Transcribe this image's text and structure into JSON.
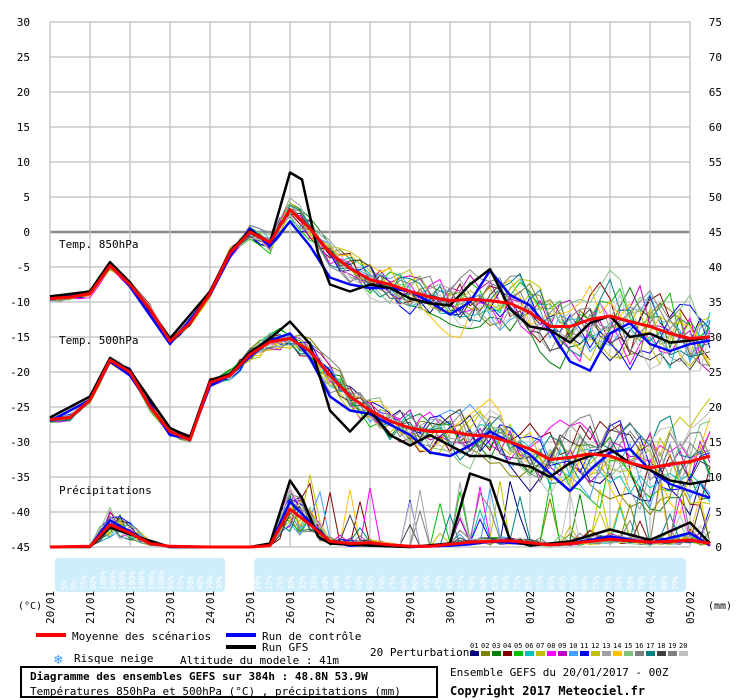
{
  "chart_data": {
    "type": "line",
    "title": "Diagramme des ensembles GEFS sur 384h : 48.8N 53.9W",
    "subtitle": "Températures 850hPa et 500hPa (°C) , précipitations (mm)",
    "left_unit": "(°C)",
    "right_unit": "(mm)",
    "y_left_ticks": [
      30,
      25,
      20,
      15,
      10,
      5,
      0,
      -5,
      -10,
      -15,
      -20,
      -25,
      -30,
      -35,
      -40,
      -45
    ],
    "y_right_ticks": [
      75,
      70,
      65,
      60,
      55,
      50,
      45,
      40,
      35,
      30,
      25,
      20,
      15,
      10,
      5,
      0
    ],
    "ylim": [
      -45,
      30
    ],
    "x_labels": [
      "20/01",
      "21/01",
      "22/01",
      "23/01",
      "24/01",
      "25/01",
      "26/01",
      "27/01",
      "28/01",
      "29/01",
      "30/01",
      "31/01",
      "01/02",
      "02/02",
      "03/02",
      "04/02",
      "05/02"
    ],
    "section_labels": {
      "t850": "Temp. 850hPa",
      "t500": "Temp. 500hPa",
      "precip": "Précipitations"
    },
    "snow_risk_pct": [
      "5%",
      "5%",
      "25%",
      "90%",
      "100%",
      "100%",
      "100%",
      "100%",
      "100%",
      "100%",
      "100%",
      "95%",
      "75%",
      "50%",
      "40%",
      "30%",
      "30%",
      "10%",
      "15%",
      "25%",
      "30%",
      "35%",
      "35%",
      "40%",
      "40%",
      "45%",
      "60%",
      "65%",
      "70%",
      "75%",
      "80%",
      "80%",
      "45%",
      "45%",
      "45%",
      "35%",
      "50%",
      "60%",
      "65%",
      "85%",
      "75%",
      "65%",
      "55%",
      "45%",
      "45%",
      "55%",
      "60%",
      "75%",
      "65%",
      "50%",
      "60%",
      "70%",
      "65%",
      "80%",
      "70%"
    ],
    "series": [
      {
        "name": "Moyenne des scénarios",
        "color": "#ff0000",
        "t850": [
          [
            0,
            -9.5
          ],
          [
            0.5,
            -9.3
          ],
          [
            1,
            -8.8
          ],
          [
            1.5,
            -4.8
          ],
          [
            2,
            -7.5
          ],
          [
            2.5,
            -11
          ],
          [
            3,
            -15.6
          ],
          [
            3.5,
            -13
          ],
          [
            4,
            -8.8
          ],
          [
            4.5,
            -3
          ],
          [
            5,
            0
          ],
          [
            5.5,
            -1.5
          ],
          [
            6,
            3.2
          ],
          [
            6.5,
            0.5
          ],
          [
            7,
            -3
          ],
          [
            7.5,
            -5.2
          ],
          [
            8,
            -6.8
          ],
          [
            8.5,
            -7.5
          ],
          [
            9,
            -8.5
          ],
          [
            9.5,
            -9.3
          ],
          [
            10,
            -9.8
          ],
          [
            10.5,
            -9.6
          ],
          [
            11,
            -9.8
          ],
          [
            11.5,
            -10.2
          ],
          [
            12,
            -11.5
          ],
          [
            12.5,
            -13.5
          ],
          [
            13,
            -13.5
          ],
          [
            13.5,
            -12.5
          ],
          [
            14,
            -12
          ],
          [
            14.5,
            -12.8
          ],
          [
            15,
            -13.5
          ],
          [
            15.5,
            -14.5
          ],
          [
            16,
            -15.2
          ],
          [
            16.5,
            -15
          ]
        ],
        "t500": [
          [
            0,
            -26.8
          ],
          [
            0.5,
            -26.5
          ],
          [
            1,
            -24
          ],
          [
            1.5,
            -18.3
          ],
          [
            2,
            -20
          ],
          [
            2.5,
            -25
          ],
          [
            3,
            -28.5
          ],
          [
            3.5,
            -29.7
          ],
          [
            4,
            -21.5
          ],
          [
            4.5,
            -20.5
          ],
          [
            5,
            -17.5
          ],
          [
            5.5,
            -15.7
          ],
          [
            6,
            -15.2
          ],
          [
            6.5,
            -17
          ],
          [
            7,
            -20.5
          ],
          [
            7.5,
            -23.5
          ],
          [
            8,
            -25.5
          ],
          [
            8.5,
            -27
          ],
          [
            9,
            -28
          ],
          [
            9.5,
            -28.5
          ],
          [
            10,
            -28.5
          ],
          [
            10.5,
            -29
          ],
          [
            11,
            -29.2
          ],
          [
            11.5,
            -30
          ],
          [
            12,
            -31
          ],
          [
            12.5,
            -32.5
          ],
          [
            13,
            -32.2
          ],
          [
            13.5,
            -31.7
          ],
          [
            14,
            -32
          ],
          [
            14.5,
            -33
          ],
          [
            15,
            -33.7
          ],
          [
            15.5,
            -33.2
          ],
          [
            16,
            -32.8
          ],
          [
            16.5,
            -32
          ]
        ],
        "precip": [
          [
            0,
            0
          ],
          [
            1,
            0.1
          ],
          [
            1.5,
            3.2
          ],
          [
            2,
            2
          ],
          [
            2.5,
            0.5
          ],
          [
            3,
            0.1
          ],
          [
            4,
            0
          ],
          [
            5,
            0
          ],
          [
            5.5,
            0.2
          ],
          [
            6,
            5.4
          ],
          [
            6.5,
            3.2
          ],
          [
            7,
            0.8
          ],
          [
            7.5,
            0.5
          ],
          [
            8,
            0.6
          ],
          [
            8.5,
            0.3
          ],
          [
            9,
            0.1
          ],
          [
            9.5,
            0.1
          ],
          [
            10,
            0.4
          ],
          [
            10.5,
            0.7
          ],
          [
            11,
            0.8
          ],
          [
            11.5,
            0.9
          ],
          [
            12,
            0.6
          ],
          [
            12.5,
            0.3
          ],
          [
            13,
            0.5
          ],
          [
            13.5,
            0.8
          ],
          [
            14,
            1.1
          ],
          [
            14.5,
            0.9
          ],
          [
            15,
            0.7
          ],
          [
            15.5,
            0.8
          ],
          [
            16,
            1
          ],
          [
            16.5,
            0.5
          ]
        ]
      },
      {
        "name": "Run de contrôle",
        "color": "#0000ff",
        "t850": [
          [
            0,
            -9.6
          ],
          [
            1,
            -8.7
          ],
          [
            1.5,
            -4.5
          ],
          [
            2,
            -7.8
          ],
          [
            3,
            -16
          ],
          [
            4,
            -9
          ],
          [
            4.5,
            -3.5
          ],
          [
            5,
            0.5
          ],
          [
            5.5,
            -2
          ],
          [
            6,
            1.5
          ],
          [
            6.5,
            -2
          ],
          [
            7,
            -6.5
          ],
          [
            7.5,
            -7.5
          ],
          [
            8,
            -8
          ],
          [
            8.5,
            -8
          ],
          [
            9,
            -8.5
          ],
          [
            9.5,
            -10
          ],
          [
            10,
            -11.8
          ],
          [
            10.5,
            -10
          ],
          [
            11,
            -5.5
          ],
          [
            11.5,
            -9
          ],
          [
            12,
            -10.5
          ],
          [
            12.5,
            -14
          ],
          [
            13,
            -18.5
          ],
          [
            13.5,
            -19.8
          ],
          [
            14,
            -14.5
          ],
          [
            14.5,
            -13
          ],
          [
            15,
            -16
          ],
          [
            15.5,
            -17
          ],
          [
            16,
            -16
          ],
          [
            16.5,
            -15.5
          ]
        ],
        "t500": [
          [
            0,
            -27
          ],
          [
            1,
            -24
          ],
          [
            1.5,
            -18.5
          ],
          [
            2,
            -20.5
          ],
          [
            3,
            -29
          ],
          [
            3.5,
            -29.5
          ],
          [
            4,
            -22
          ],
          [
            4.5,
            -20.5
          ],
          [
            5,
            -17.8
          ],
          [
            5.5,
            -15.5
          ],
          [
            6,
            -14.5
          ],
          [
            6.5,
            -18
          ],
          [
            7,
            -23.5
          ],
          [
            7.5,
            -25.5
          ],
          [
            8,
            -26
          ],
          [
            8.5,
            -27.5
          ],
          [
            9,
            -29
          ],
          [
            9.5,
            -31.5
          ],
          [
            10,
            -32
          ],
          [
            10.5,
            -30.5
          ],
          [
            11,
            -28.5
          ],
          [
            11.5,
            -30
          ],
          [
            12,
            -31.8
          ],
          [
            12.5,
            -34.5
          ],
          [
            13,
            -37
          ],
          [
            13.5,
            -34
          ],
          [
            14,
            -31.5
          ],
          [
            14.5,
            -31
          ],
          [
            15,
            -34
          ],
          [
            15.5,
            -36
          ],
          [
            16,
            -37
          ],
          [
            16.5,
            -38
          ]
        ],
        "precip": [
          [
            0,
            0
          ],
          [
            1,
            0.1
          ],
          [
            1.5,
            3.8
          ],
          [
            2,
            2.2
          ],
          [
            2.5,
            0.6
          ],
          [
            3,
            0
          ],
          [
            5,
            0
          ],
          [
            5.5,
            0.3
          ],
          [
            6,
            6.5
          ],
          [
            6.5,
            3.5
          ],
          [
            7,
            0.8
          ],
          [
            7.5,
            0.2
          ],
          [
            8,
            0.3
          ],
          [
            9,
            0
          ],
          [
            10,
            0.2
          ],
          [
            10.5,
            0.4
          ],
          [
            11,
            0.8
          ],
          [
            12,
            0.4
          ],
          [
            13,
            0.5
          ],
          [
            14,
            1.5
          ],
          [
            15,
            0.6
          ],
          [
            16,
            2
          ],
          [
            16.5,
            0.2
          ]
        ]
      },
      {
        "name": "Run GFS",
        "color": "#000000",
        "t850": [
          [
            0,
            -9.2
          ],
          [
            1,
            -8.5
          ],
          [
            1.5,
            -4.3
          ],
          [
            2,
            -7.2
          ],
          [
            3,
            -15.2
          ],
          [
            4,
            -8.5
          ],
          [
            4.5,
            -2.8
          ],
          [
            5,
            0.2
          ],
          [
            5.5,
            -1.5
          ],
          [
            6,
            8.5
          ],
          [
            6.3,
            7.5
          ],
          [
            6.7,
            -3
          ],
          [
            7,
            -7.5
          ],
          [
            7.5,
            -8.5
          ],
          [
            8,
            -7.5
          ],
          [
            8.5,
            -8
          ],
          [
            9,
            -9.5
          ],
          [
            9.5,
            -10.2
          ],
          [
            10,
            -10.5
          ],
          [
            10.5,
            -7.5
          ],
          [
            11,
            -5.3
          ],
          [
            11.5,
            -11
          ],
          [
            12,
            -13.5
          ],
          [
            12.5,
            -14
          ],
          [
            13,
            -15.8
          ],
          [
            13.5,
            -13
          ],
          [
            14,
            -12
          ],
          [
            14.5,
            -15
          ],
          [
            15,
            -14.5
          ],
          [
            15.5,
            -15.8
          ],
          [
            16,
            -15.5
          ],
          [
            16.5,
            -15
          ]
        ],
        "t500": [
          [
            0,
            -26.5
          ],
          [
            1,
            -23.5
          ],
          [
            1.5,
            -18
          ],
          [
            2,
            -19.8
          ],
          [
            3,
            -28
          ],
          [
            3.5,
            -29.3
          ],
          [
            4,
            -21.2
          ],
          [
            4.5,
            -20.3
          ],
          [
            5,
            -17.2
          ],
          [
            5.5,
            -15.2
          ],
          [
            6,
            -12.8
          ],
          [
            6.5,
            -16
          ],
          [
            7,
            -25.5
          ],
          [
            7.5,
            -28.5
          ],
          [
            8,
            -25.5
          ],
          [
            8.5,
            -29
          ],
          [
            9,
            -30.5
          ],
          [
            9.5,
            -29
          ],
          [
            10,
            -30.5
          ],
          [
            10.5,
            -32
          ],
          [
            11,
            -32
          ],
          [
            11.5,
            -33
          ],
          [
            12,
            -33.5
          ],
          [
            12.5,
            -35
          ],
          [
            13,
            -33
          ],
          [
            13.5,
            -32
          ],
          [
            14,
            -31
          ],
          [
            14.5,
            -33
          ],
          [
            15,
            -34
          ],
          [
            15.5,
            -35.5
          ],
          [
            16,
            -36
          ],
          [
            16.5,
            -35.5
          ]
        ],
        "precip": [
          [
            0,
            0
          ],
          [
            1,
            0
          ],
          [
            1.5,
            2.8
          ],
          [
            2,
            1.8
          ],
          [
            3,
            0
          ],
          [
            5,
            0
          ],
          [
            5.5,
            0.5
          ],
          [
            6,
            9.5
          ],
          [
            6.3,
            7
          ],
          [
            6.7,
            1.5
          ],
          [
            7,
            0.5
          ],
          [
            8,
            0.2
          ],
          [
            9,
            0
          ],
          [
            10,
            0.5
          ],
          [
            10.5,
            10.5
          ],
          [
            11,
            9.5
          ],
          [
            11.5,
            1
          ],
          [
            12,
            0.2
          ],
          [
            13,
            0.8
          ],
          [
            14,
            2.5
          ],
          [
            15,
            1
          ],
          [
            16,
            3.5
          ],
          [
            16.5,
            0.5
          ]
        ]
      }
    ],
    "perturbations": {
      "label": "20 Perturbations",
      "numbers": [
        "01",
        "02",
        "03",
        "04",
        "05",
        "06",
        "07",
        "08",
        "09",
        "10",
        "11",
        "12",
        "13",
        "14",
        "15",
        "16",
        "17",
        "18",
        "19",
        "20"
      ],
      "colors": [
        "#000080",
        "#808000",
        "#008000",
        "#800000",
        "#00c000",
        "#00c0c0",
        "#c0c000",
        "#ff00ff",
        "#c000c0",
        "#40a0ff",
        "#0000ff",
        "#c0c000",
        "#a0a0a0",
        "#ffc000",
        "#80c080",
        "#808080",
        "#008080",
        "#404040",
        "#808080",
        "#c0c0c0"
      ]
    },
    "legend_text": {
      "mean": "Moyenne des scénarios",
      "control": "Run de contrôle",
      "gfs": "Run GFS",
      "snow": "Risque neige",
      "altitude": "Altitude du modele : 41m"
    },
    "footer": {
      "title": "Diagramme des ensembles GEFS sur 384h : 48.8N 53.9W",
      "subtitle": "Températures 850hPa et 500hPa (°C) , précipitations (mm)",
      "ensemble": "Ensemble GEFS du 20/01/2017 - 00Z",
      "copyright": "Copyright 2017 Meteociel.fr"
    }
  }
}
